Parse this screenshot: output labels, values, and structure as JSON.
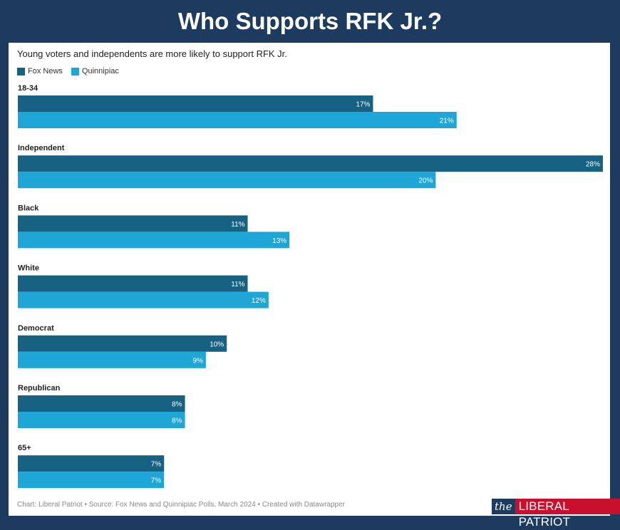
{
  "header": {
    "title": "Who Supports RFK Jr.?"
  },
  "chart_data": {
    "type": "bar",
    "orientation": "horizontal",
    "subtitle": "Young voters and independents are more likely to support RFK Jr.",
    "categories": [
      "18-34",
      "Independent",
      "Black",
      "White",
      "Democrat",
      "Republican",
      "65+"
    ],
    "series": [
      {
        "name": "Fox News",
        "color": "#176182",
        "values": [
          17,
          28,
          11,
          11,
          10,
          8,
          7
        ]
      },
      {
        "name": "Quinnipiac",
        "color": "#1ea6d6",
        "values": [
          21,
          20,
          13,
          12,
          9,
          8,
          7
        ]
      }
    ],
    "value_suffix": "%",
    "xlim": [
      0,
      28
    ],
    "grid": false,
    "legend_position": "top-left"
  },
  "footer": {
    "text": "Chart: Liberal Patriot • Source: Fox News and Quinnipiac Polls, March 2024 • Created with Datawrapper"
  },
  "logo": {
    "prefix": "the",
    "name": "LIBERAL PATRIOT"
  }
}
